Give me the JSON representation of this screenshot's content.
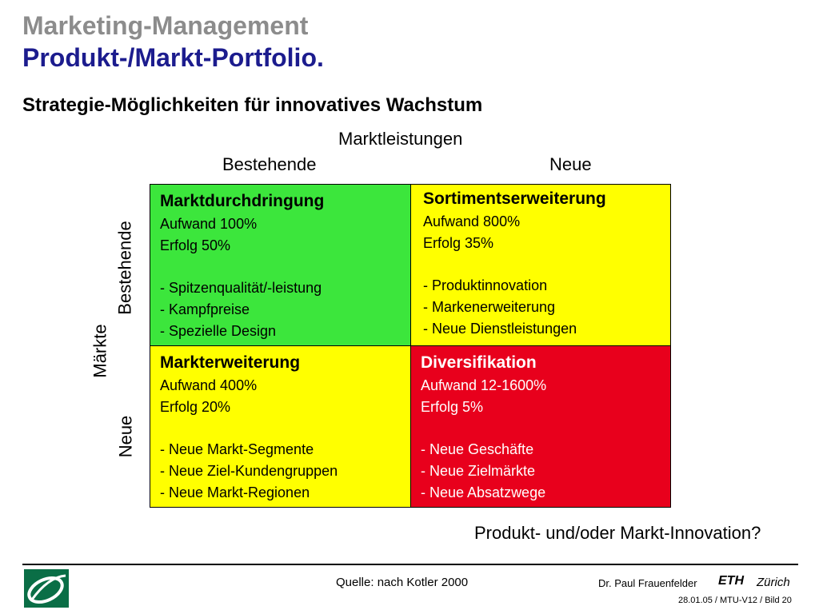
{
  "header": {
    "title_line1": "Marketing-Management",
    "title_line2": "Produkt-/Markt-Portfolio.",
    "subtitle": "Strategie-Möglichkeiten für innovatives Wachstum"
  },
  "axes": {
    "top_label": "Marktleistungen",
    "top_existing": "Bestehende",
    "top_new": "Neue",
    "side_label": "Märkte",
    "side_existing": "Bestehende",
    "side_new": "Neue"
  },
  "matrix": {
    "top_left": {
      "title": "Marktdurchdringung",
      "effort": "Aufwand 100%",
      "success": "Erfolg 50%",
      "items": [
        "- Spitzenqualität/-leistung",
        "- Kampfpreise",
        "- Spezielle Design"
      ],
      "color": "#3ce63c"
    },
    "top_right": {
      "title": "Sortimentserweiterung",
      "effort": "Aufwand 800%",
      "success": "Erfolg 35%",
      "items": [
        "- Produktinnovation",
        "- Markenerweiterung",
        "- Neue Dienstleistungen"
      ],
      "color": "#ffff00"
    },
    "bottom_left": {
      "title": "Markterweiterung",
      "effort": "Aufwand 400%",
      "success": "Erfolg 20%",
      "items": [
        "- Neue Markt-Segmente",
        "- Neue Ziel-Kundengruppen",
        "- Neue Markt-Regionen"
      ],
      "color": "#ffff00"
    },
    "bottom_right": {
      "title": "Diversifikation",
      "effort": "Aufwand 12-1600%",
      "success": "Erfolg 5%",
      "items": [
        "- Neue Geschäfte",
        "- Neue Zielmärkte",
        "- Neue Absatzwege"
      ],
      "color": "#e8001c"
    }
  },
  "question": "Produkt- und/oder Markt-Innovation?",
  "footer": {
    "source": "Quelle: nach Kotler 2000",
    "author": "Dr. Paul Frauenfelder",
    "eth": "ETH",
    "zurich": "Zürich",
    "slide_ref": "28.01.05 / MTU-V12 / Bild 20",
    "logo_icon": "eth-swoosh-logo"
  }
}
